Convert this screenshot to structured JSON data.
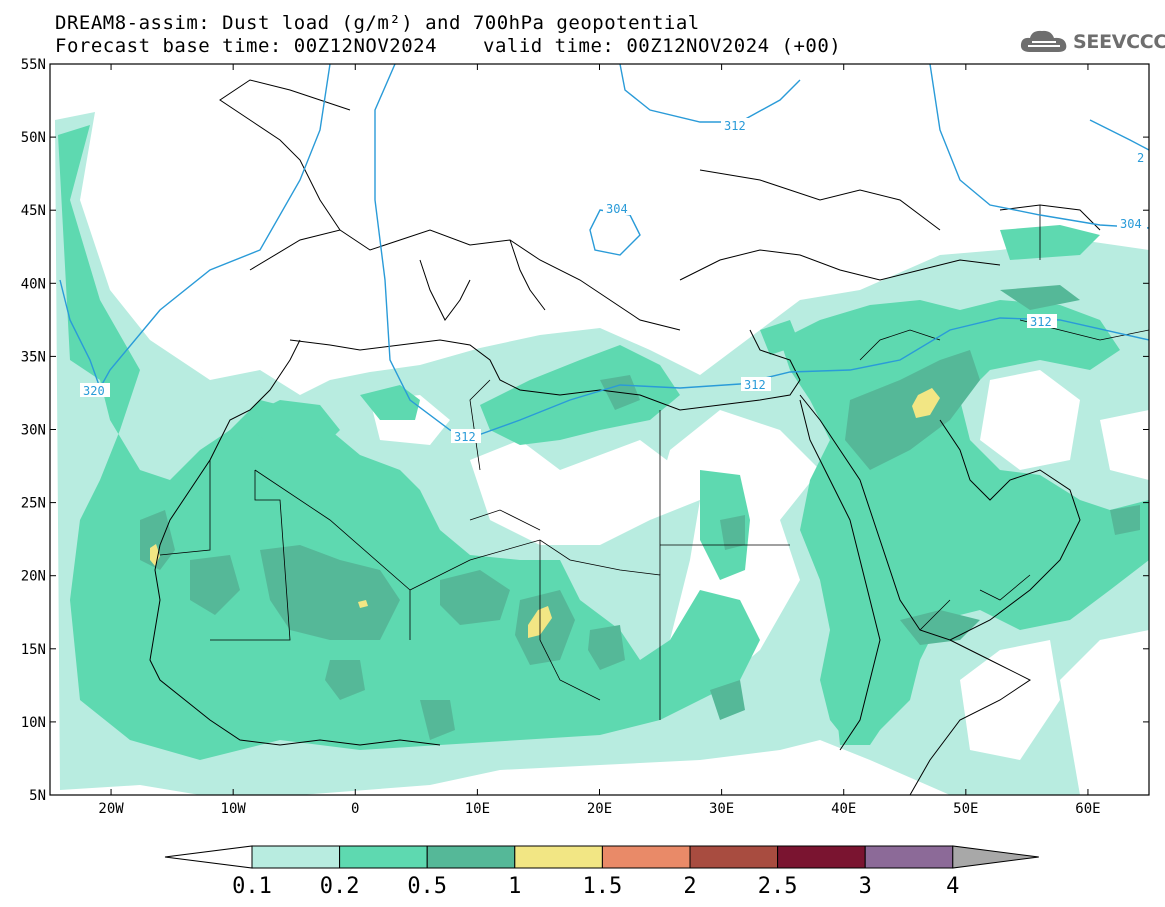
{
  "header": {
    "title_line1": "DREAM8-assim: Dust load (g/m²) and 700hPa geopotential",
    "base_time": "Forecast base time: 00Z12NOV2024",
    "valid_time": "valid time: 00Z12NOV2024 (+00)"
  },
  "logo": {
    "text": "SEEVCCC",
    "icon": "cloud-icon"
  },
  "map": {
    "lat_labels": [
      "55N",
      "50N",
      "45N",
      "40N",
      "35N",
      "30N",
      "25N",
      "20N",
      "15N",
      "10N",
      "5N"
    ],
    "lon_labels": [
      "20W",
      "10W",
      "0",
      "10E",
      "20E",
      "30E",
      "40E",
      "50E",
      "60E"
    ],
    "lat_range": [
      5,
      55
    ],
    "lon_range": [
      -25,
      65
    ],
    "contour_labels": [
      "312",
      "304",
      "304",
      "320",
      "312",
      "312",
      "312",
      "2"
    ]
  },
  "colorbar": {
    "labels": [
      "0.1",
      "0.2",
      "0.5",
      "1",
      "1.5",
      "2",
      "2.5",
      "3",
      "4"
    ],
    "colors": [
      "#b8ece0",
      "#5ed9b0",
      "#55b898",
      "#f2e684",
      "#e98a68",
      "#a84c40",
      "#7a1430",
      "#8c6a98",
      "#a8a8a8"
    ]
  }
}
